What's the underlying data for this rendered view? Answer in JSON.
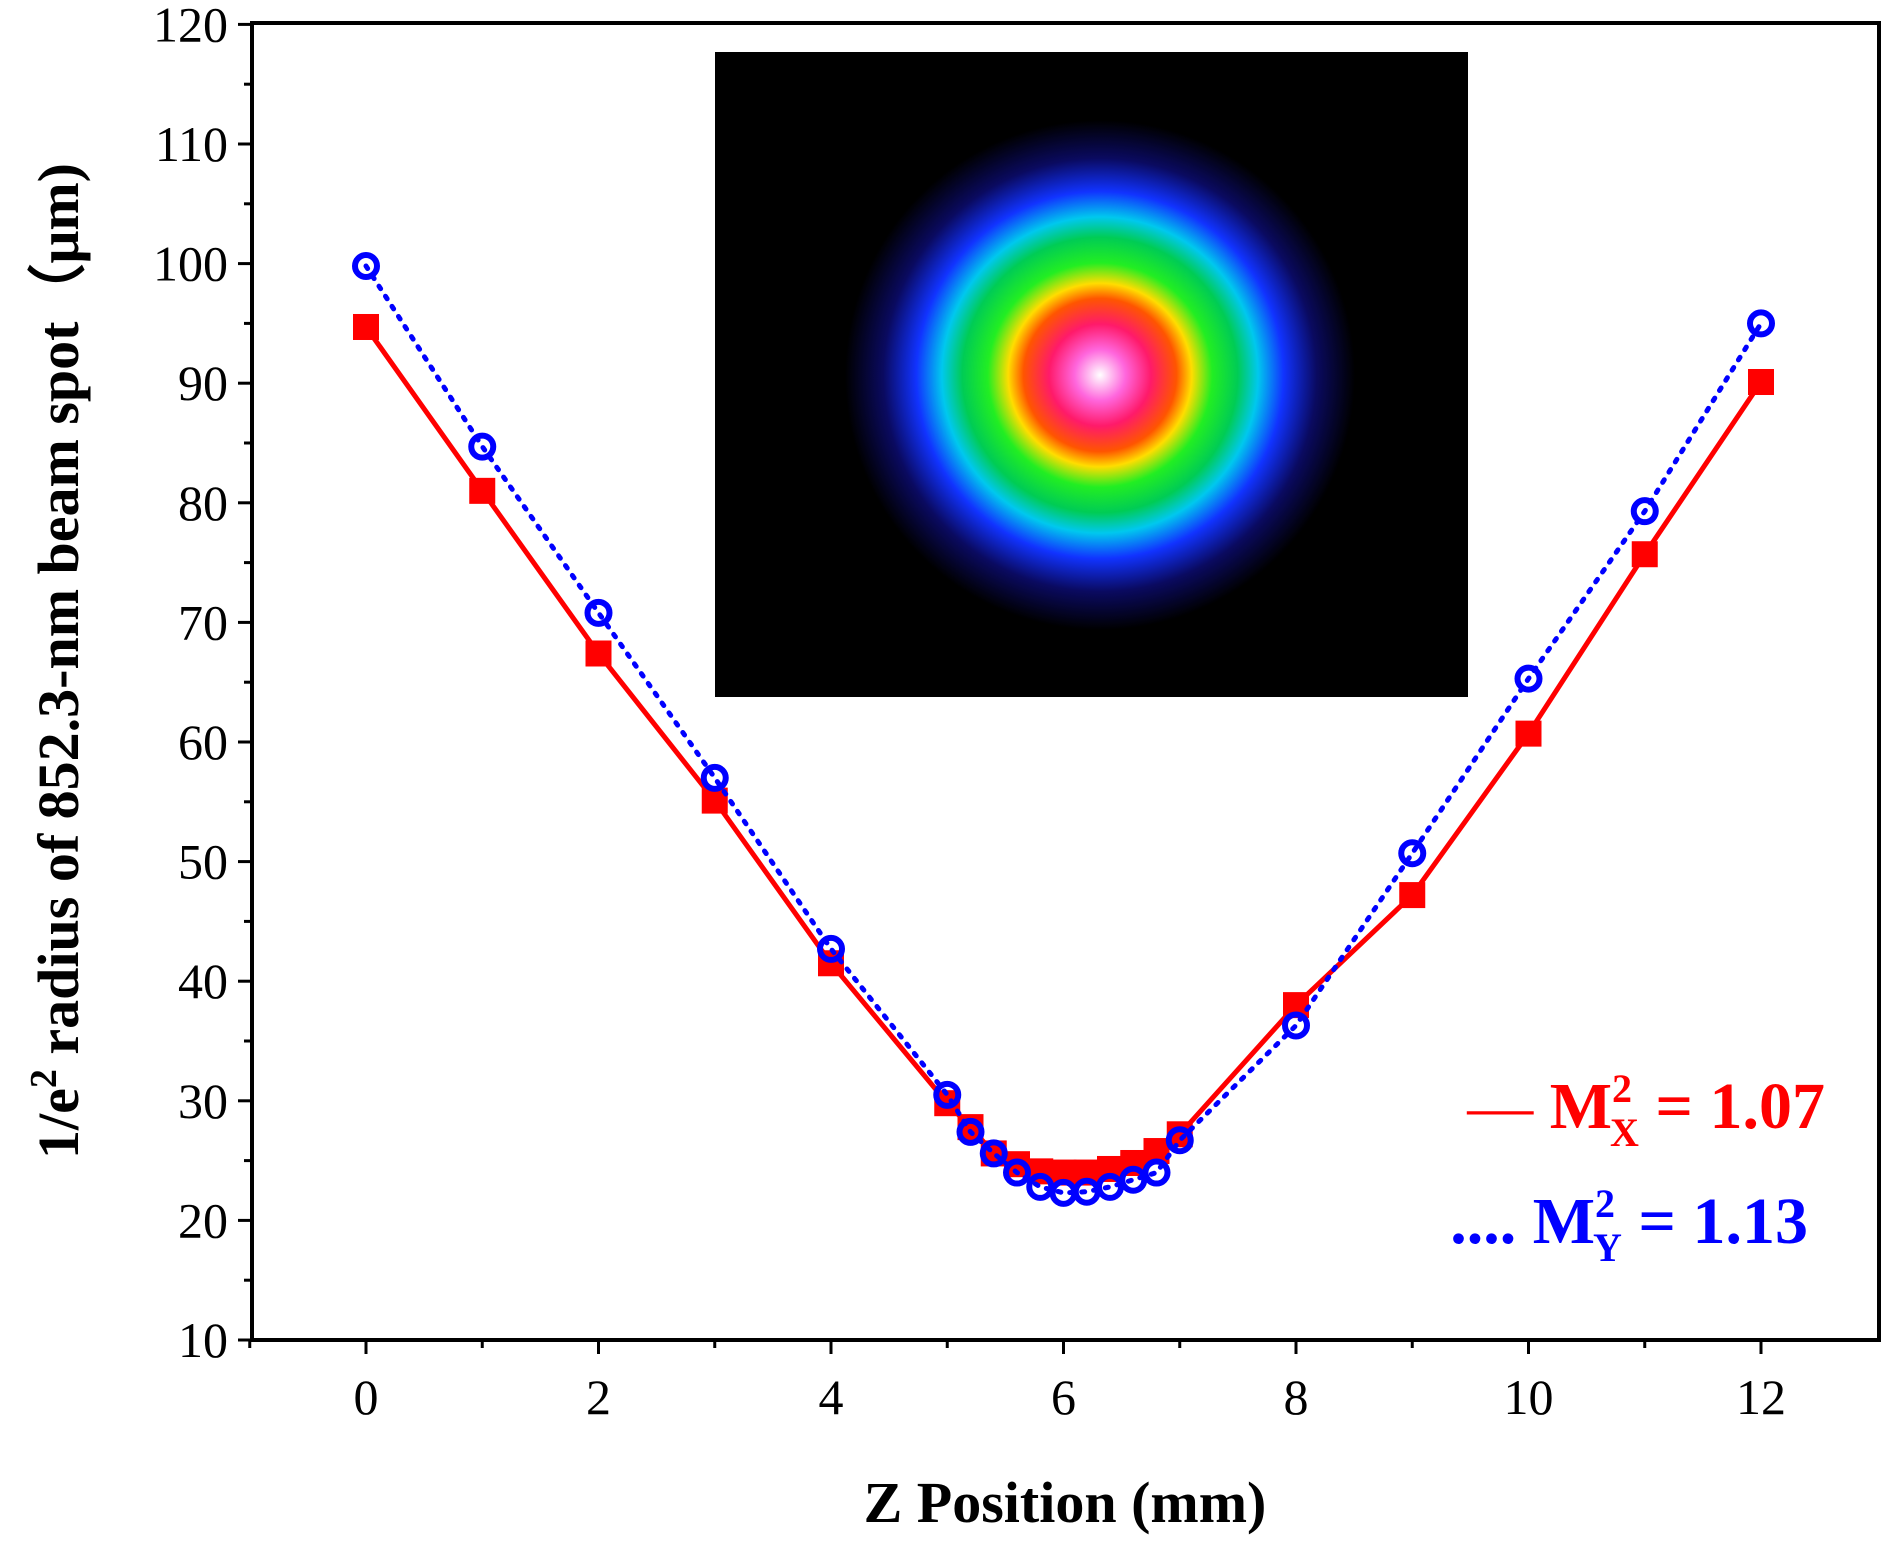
{
  "chart_data": {
    "type": "line",
    "title": "",
    "xlabel": "Z Position (mm)",
    "ylabel_main": "1/e",
    "ylabel_sup": "2",
    "ylabel_rest": " radius of 852.3-nm beam spot（μm)",
    "xlim": [
      -1,
      12.5
    ],
    "ylim": [
      10,
      120
    ],
    "xticks": [
      0,
      2,
      4,
      6,
      8,
      10,
      12
    ],
    "yticks": [
      10,
      20,
      30,
      40,
      50,
      60,
      70,
      80,
      90,
      100,
      110,
      120
    ],
    "series": [
      {
        "name": "X",
        "color": "#ff0000",
        "marker": "square",
        "line": "solid",
        "legend_prefix": "—",
        "legend_label": "M",
        "legend_sup": "2",
        "legend_sub": "X",
        "legend_value": " = 1.07",
        "x": [
          0,
          1,
          2,
          3,
          4,
          5,
          5.2,
          5.4,
          5.6,
          5.8,
          6.0,
          6.2,
          6.4,
          6.6,
          6.8,
          7,
          8,
          9,
          10,
          11,
          12
        ],
        "values": [
          94.7,
          81.0,
          67.4,
          55.1,
          41.5,
          29.8,
          27.8,
          25.6,
          24.7,
          24.1,
          24.0,
          24.0,
          24.3,
          24.8,
          25.8,
          27.2,
          38.0,
          47.2,
          60.7,
          75.7,
          90.1
        ]
      },
      {
        "name": "Y",
        "color": "#0000ff",
        "marker": "circle",
        "line": "dotted",
        "legend_prefix": "....",
        "legend_label": "M",
        "legend_sup": "2",
        "legend_sub": "Y",
        "legend_value": " = 1.13",
        "x": [
          0,
          1,
          2,
          3,
          4,
          5,
          5.2,
          5.4,
          5.6,
          5.8,
          6.0,
          6.2,
          6.4,
          6.6,
          6.8,
          7,
          8,
          9,
          10,
          11,
          12
        ],
        "values": [
          99.8,
          84.7,
          70.8,
          57.0,
          42.7,
          30.5,
          27.4,
          25.6,
          24.0,
          22.8,
          22.3,
          22.4,
          22.8,
          23.4,
          24.0,
          26.7,
          36.3,
          50.7,
          65.3,
          79.3,
          95.0
        ]
      }
    ],
    "inset": "beam-spot-image"
  }
}
